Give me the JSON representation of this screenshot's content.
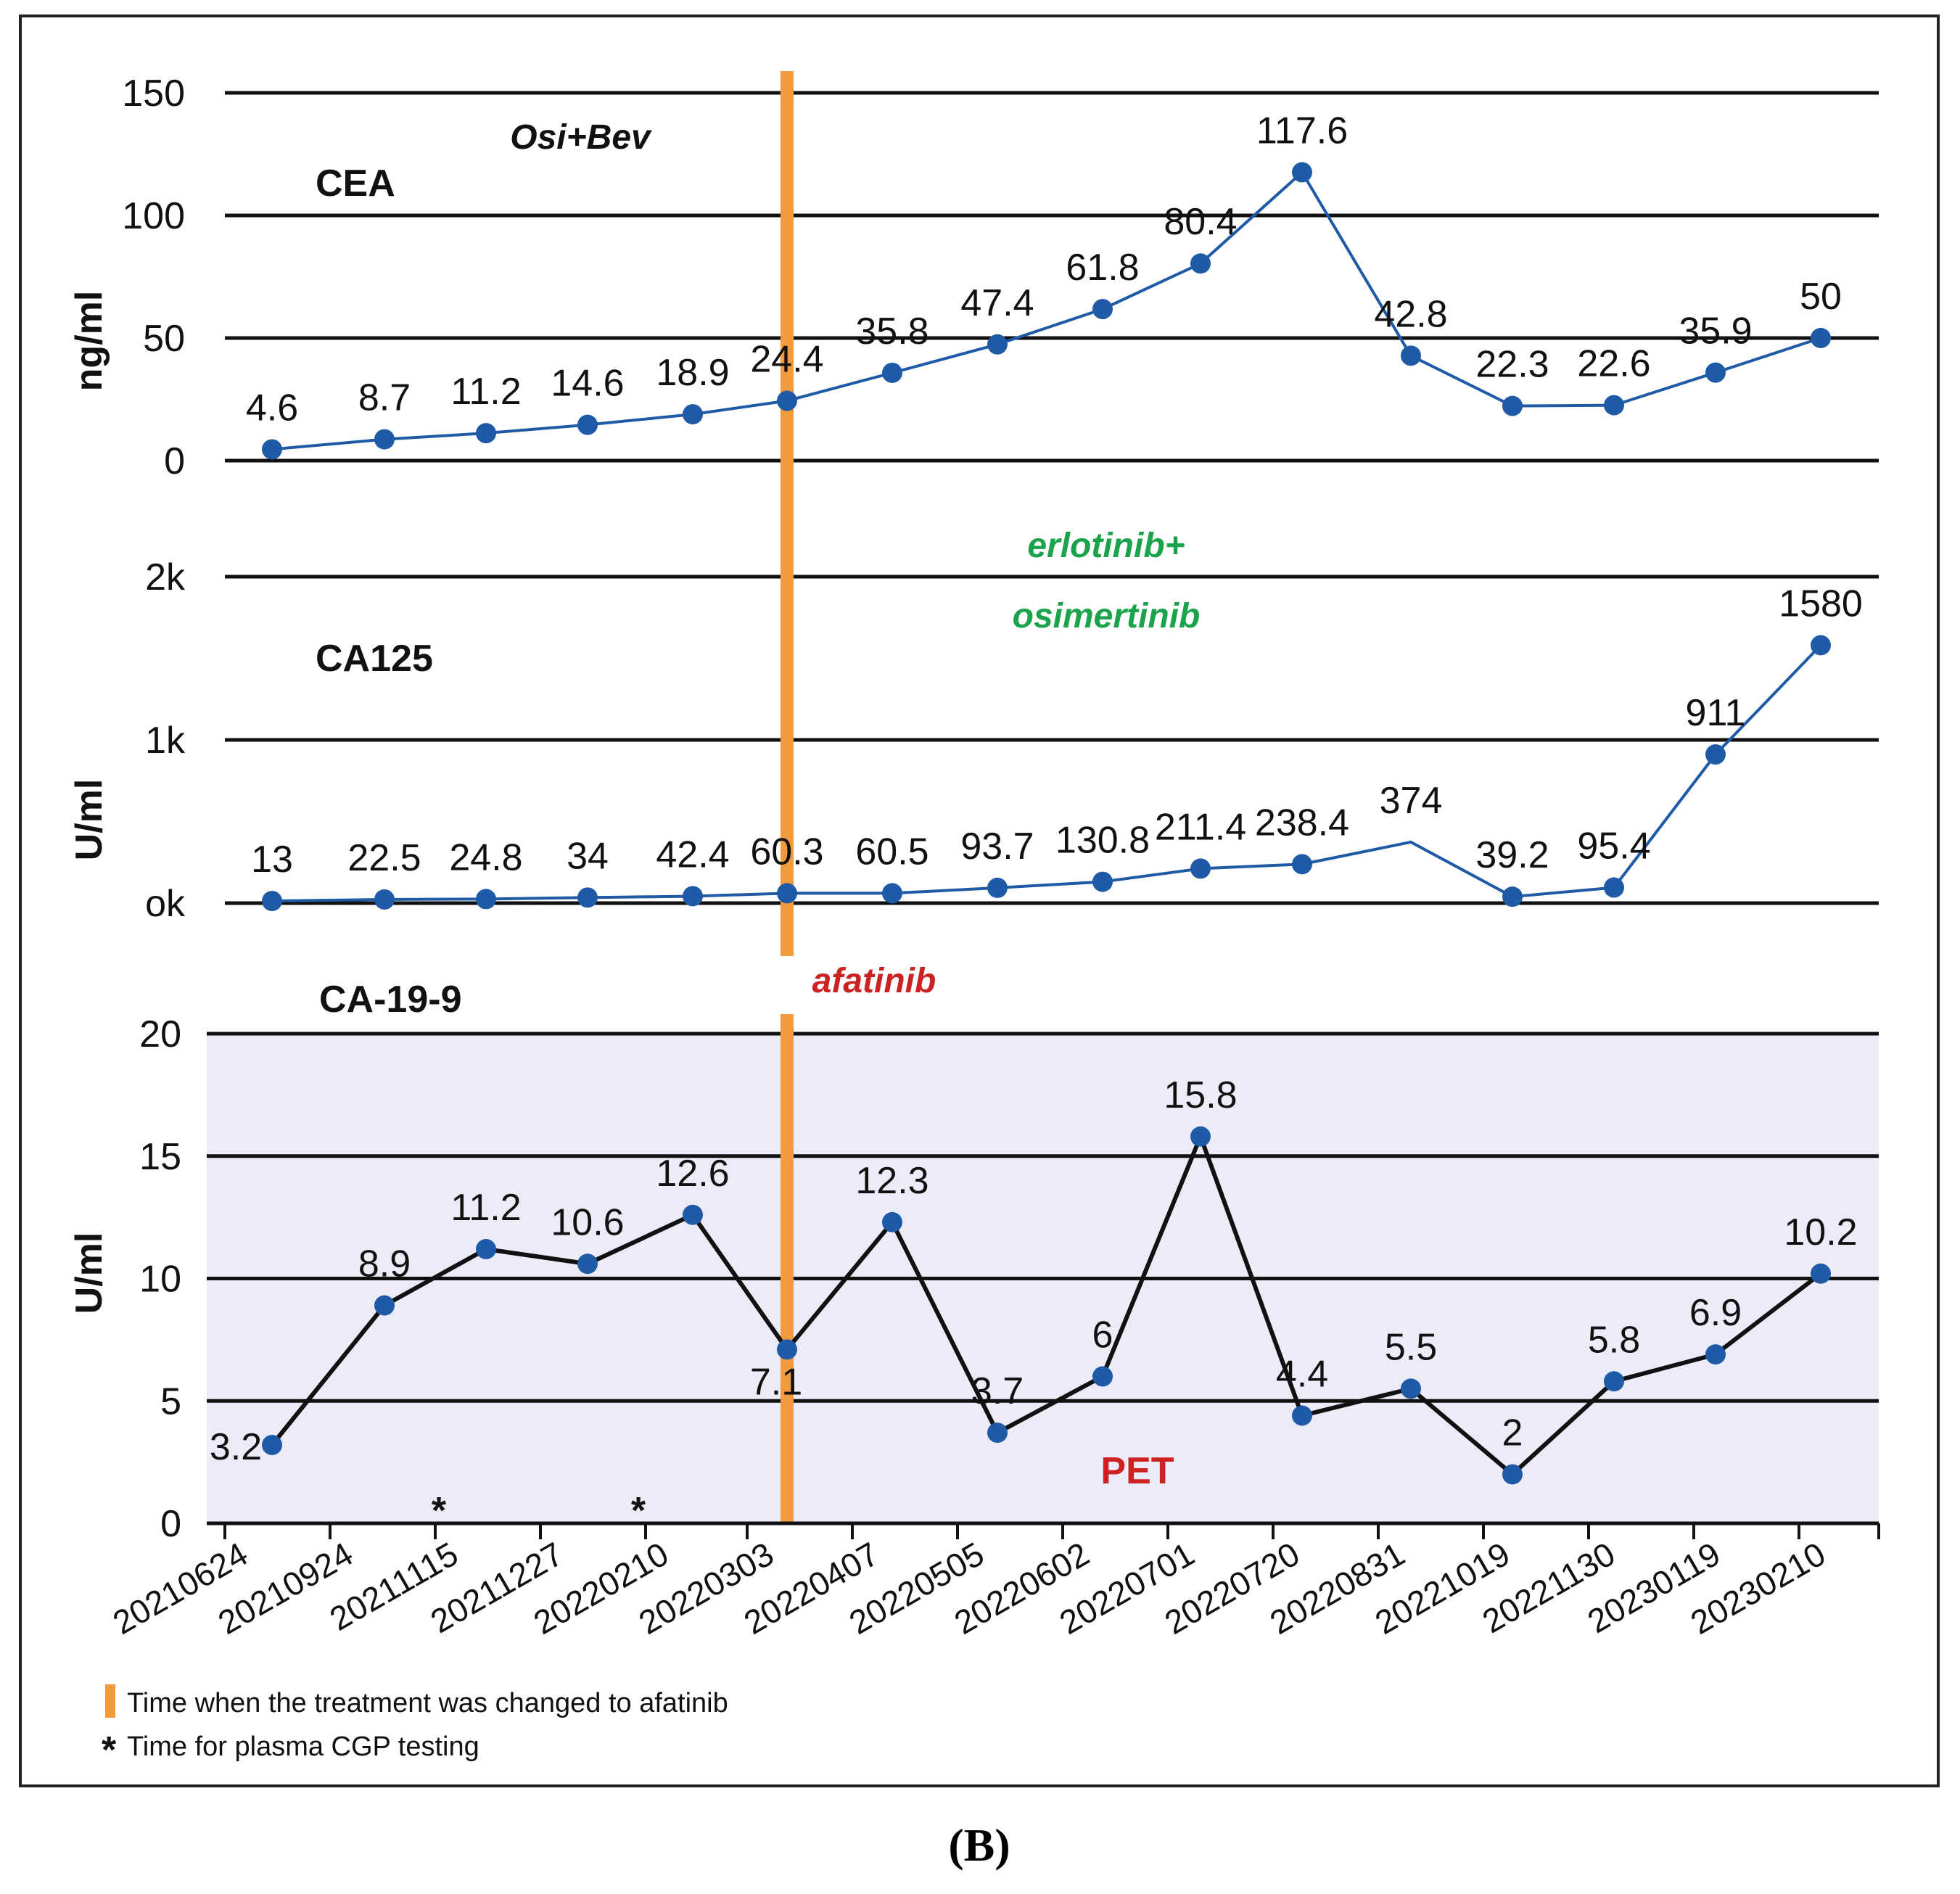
{
  "chart_data": {
    "type": "line",
    "x": [
      "20210624",
      "20210924",
      "20211115",
      "20211227",
      "20220210",
      "20220303",
      "20220407",
      "20220505",
      "20220602",
      "20220701",
      "20220720",
      "20220831",
      "20221019",
      "20221130",
      "20230119",
      "20230210"
    ],
    "treatment_change_x": "20220303",
    "panels": [
      {
        "key": "cea",
        "title": "CEA",
        "ylabel": "ng/ml",
        "yticks": [
          "0",
          "50",
          "100",
          "150"
        ],
        "ylim": [
          0,
          150
        ],
        "color": "#1f5aa6",
        "values": [
          4.6,
          8.7,
          11.2,
          14.6,
          18.9,
          24.4,
          35.8,
          47.4,
          61.8,
          80.4,
          117.6,
          42.8,
          22.3,
          22.6,
          35.9,
          50
        ],
        "labels": [
          "4.6",
          "8.7",
          "11.2",
          "14.6",
          "18.9",
          "24.4",
          "35.8",
          "47.4",
          "61.8",
          "80.4",
          "117.6",
          "42.8",
          "22.3",
          "22.6",
          "35.9",
          "50"
        ]
      },
      {
        "key": "ca125",
        "title": "CA125",
        "ylabel": "U/ml",
        "yticks": [
          "ok",
          "1k",
          "2k"
        ],
        "ylim": [
          0,
          2000
        ],
        "color": "#1f5aa6",
        "values": [
          13,
          22.5,
          24.8,
          34,
          42.4,
          60.3,
          60.5,
          93.7,
          130.8,
          211.4,
          238.4,
          374,
          39.2,
          95.4,
          911,
          1580
        ],
        "labels": [
          "13",
          "22.5",
          "24.8",
          "34",
          "42.4",
          "60.3",
          "60.5",
          "93.7",
          "130.8",
          "211.4",
          "238.4",
          "374",
          "39.2",
          "95.4",
          "911",
          "1580"
        ],
        "no_marker_index": 11
      },
      {
        "key": "ca199",
        "title": "CA-19-9",
        "ylabel": "U/ml",
        "yticks": [
          "0",
          "5",
          "10",
          "15",
          "20"
        ],
        "ylim": [
          0,
          20
        ],
        "color": "#111111",
        "background": "#ececf8",
        "values": [
          3.2,
          8.9,
          11.2,
          10.6,
          12.6,
          7.1,
          12.3,
          3.7,
          6,
          15.8,
          4.4,
          5.5,
          2,
          5.8,
          6.9,
          10.2
        ],
        "labels": [
          "3.2",
          "8.9",
          "11.2",
          "10.6",
          "12.6",
          "7.1",
          "12.3",
          "3.7",
          "6",
          "15.8",
          "4.4",
          "5.5",
          "2",
          "5.8",
          "6.9",
          "10.2"
        ]
      }
    ],
    "annotations": {
      "osi_bev": "Osi+Bev",
      "erlotinib_line1": "erlotinib+",
      "erlotinib_line2": "osimertinib",
      "afatinib": "afatinib",
      "pet": "PET",
      "cgp_marker": "*"
    },
    "cgp_testing_x": [
      "20211115",
      "20220210"
    ],
    "colors": {
      "treatment_line": "#f39a3c",
      "marker": "#1f5aa6",
      "osi_bev": "#222222",
      "erlotinib": "#1aa34a",
      "afatinib": "#cc2222",
      "pet": "#cc2222"
    },
    "legend": [
      {
        "symbol": "orange-bar",
        "text": "Time when the treatment was changed to afatinib"
      },
      {
        "symbol": "asterisk",
        "text": "Time for plasma CGP testing"
      }
    ],
    "caption": "(B)"
  }
}
